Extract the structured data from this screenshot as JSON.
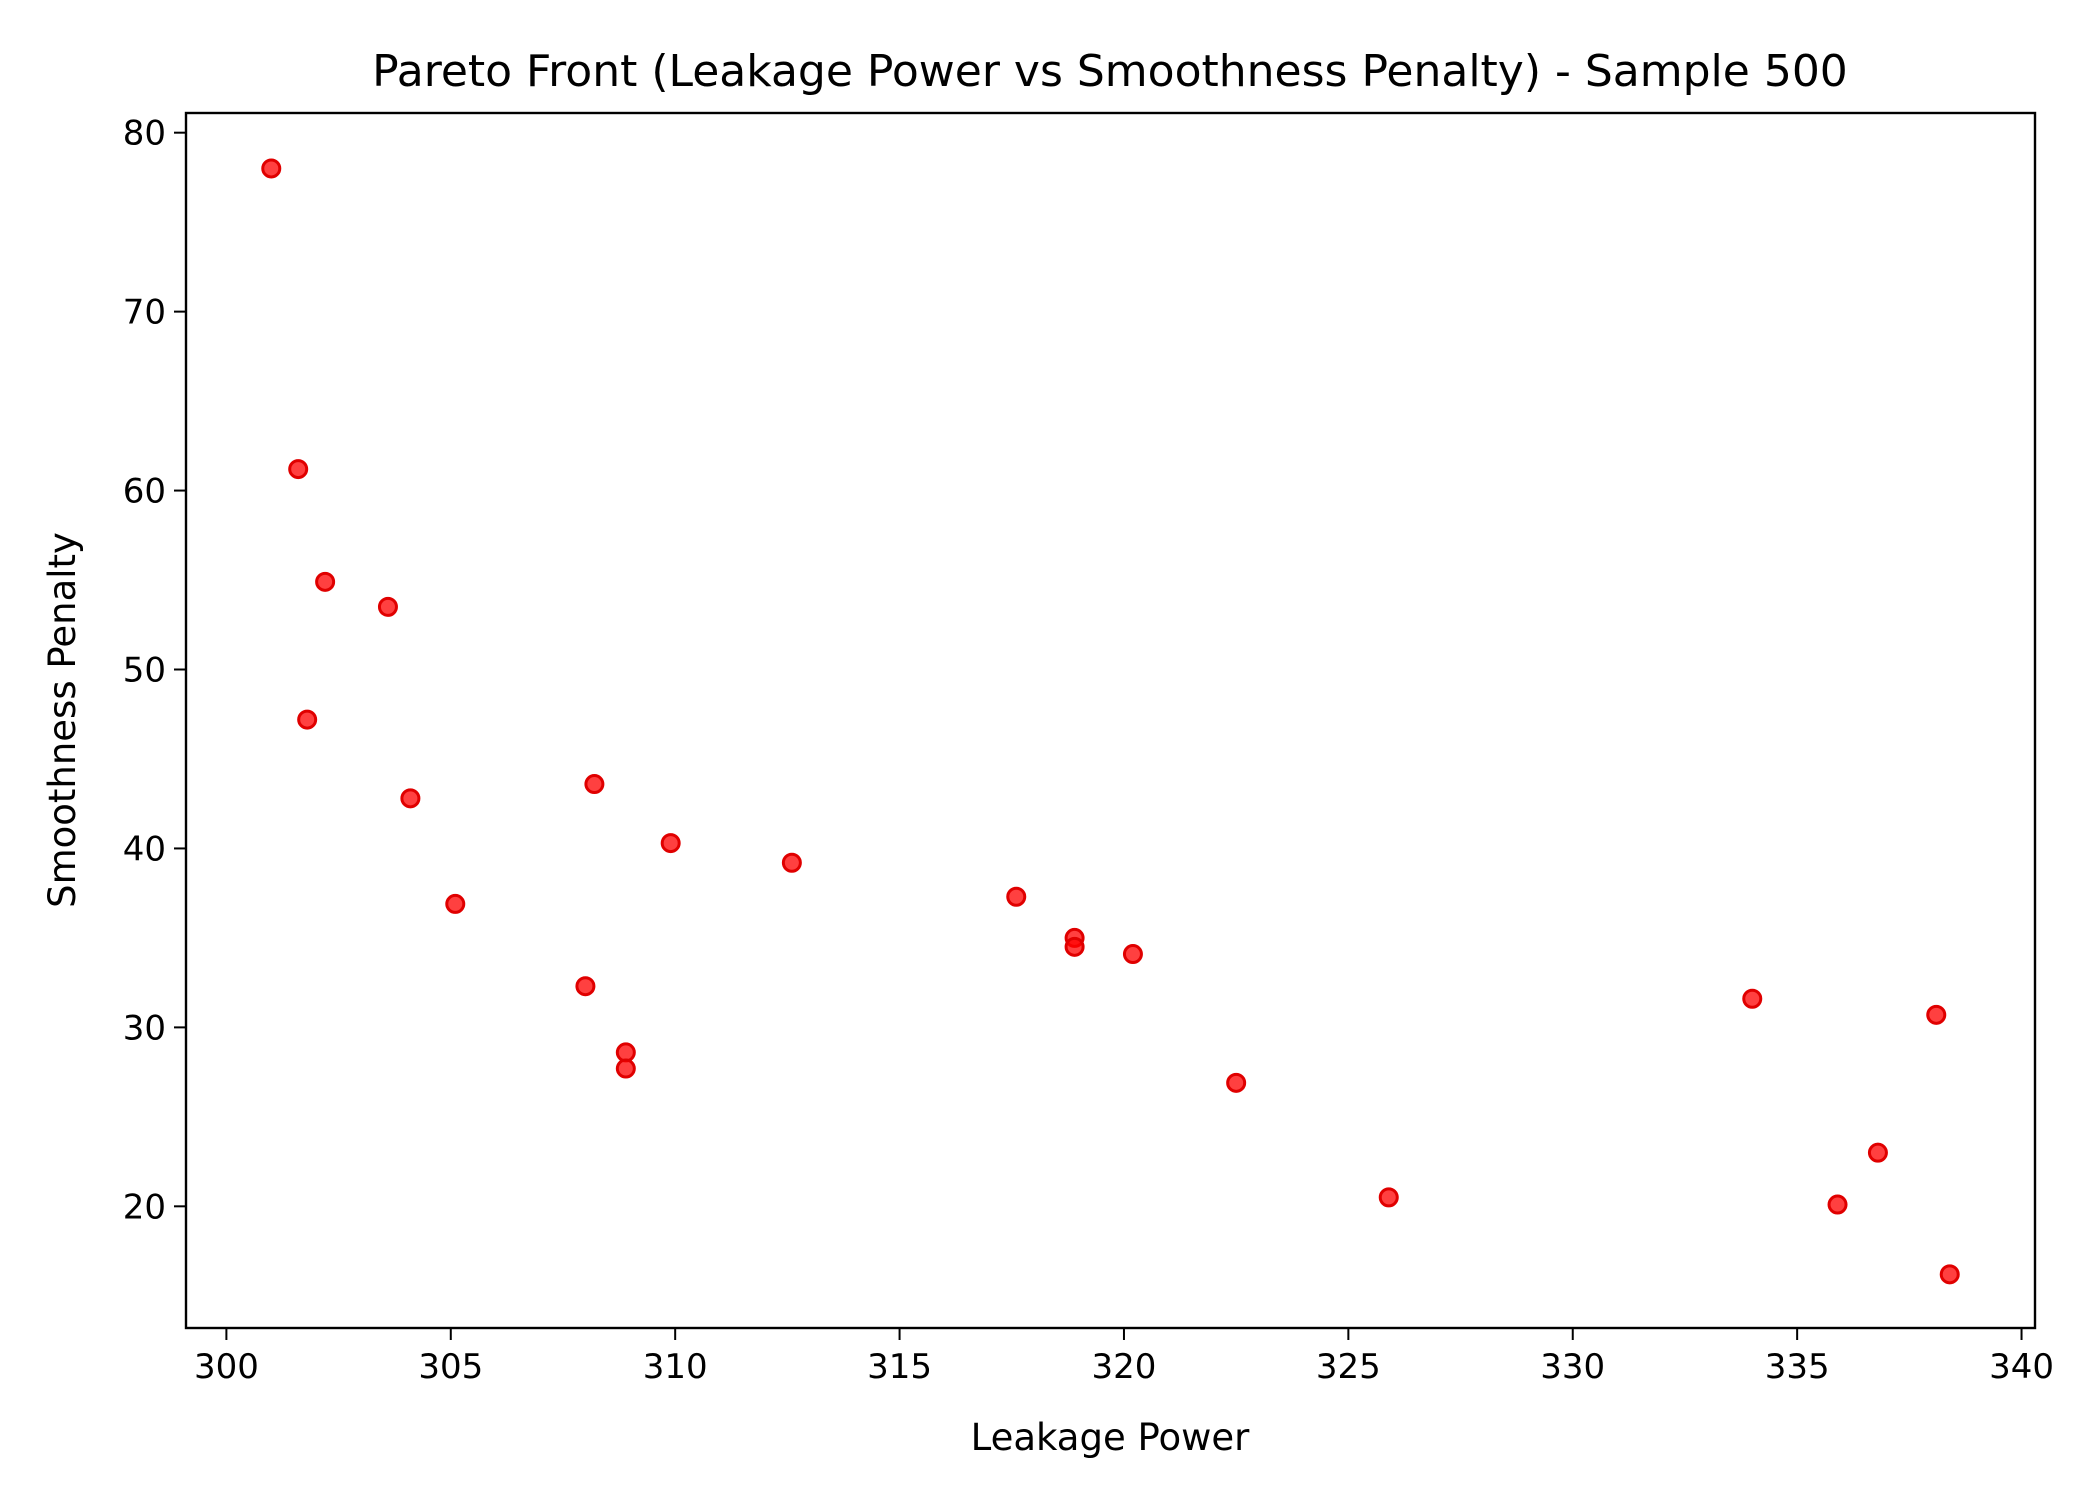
{
  "chart_data": {
    "type": "scatter",
    "title": "Pareto Front (Leakage Power vs Smoothness Penalty) - Sample 500",
    "xlabel": "Leakage Power",
    "ylabel": "Smoothness Penalty",
    "xlim": [
      299.1,
      340.3
    ],
    "ylim": [
      13.2,
      81.1
    ],
    "xticks": [
      300,
      305,
      310,
      315,
      320,
      325,
      330,
      335,
      340
    ],
    "yticks": [
      20,
      30,
      40,
      50,
      60,
      70,
      80
    ],
    "grid": false,
    "legend": "none",
    "point_color": "#ff0000",
    "point_edge_color": "#e00000",
    "points": [
      {
        "x": 301.0,
        "y": 78.0
      },
      {
        "x": 301.6,
        "y": 61.2
      },
      {
        "x": 302.2,
        "y": 54.9
      },
      {
        "x": 303.6,
        "y": 53.5
      },
      {
        "x": 301.8,
        "y": 47.2
      },
      {
        "x": 304.1,
        "y": 42.8
      },
      {
        "x": 305.1,
        "y": 36.9
      },
      {
        "x": 308.2,
        "y": 43.6
      },
      {
        "x": 309.9,
        "y": 40.3
      },
      {
        "x": 308.0,
        "y": 32.3
      },
      {
        "x": 308.9,
        "y": 28.6
      },
      {
        "x": 308.9,
        "y": 27.7
      },
      {
        "x": 312.6,
        "y": 39.2
      },
      {
        "x": 317.6,
        "y": 37.3
      },
      {
        "x": 318.9,
        "y": 35.0
      },
      {
        "x": 318.9,
        "y": 34.5
      },
      {
        "x": 320.2,
        "y": 34.1
      },
      {
        "x": 322.5,
        "y": 26.9
      },
      {
        "x": 325.9,
        "y": 20.5
      },
      {
        "x": 334.0,
        "y": 31.6
      },
      {
        "x": 338.1,
        "y": 30.7
      },
      {
        "x": 336.8,
        "y": 23.0
      },
      {
        "x": 335.9,
        "y": 20.1
      },
      {
        "x": 338.4,
        "y": 16.2
      }
    ]
  }
}
